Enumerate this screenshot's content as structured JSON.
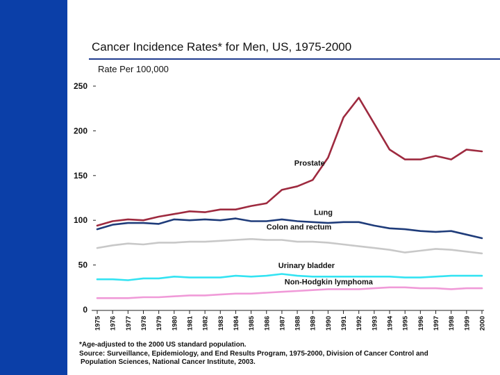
{
  "theme": {
    "sidebar_color": "#0b3fa8",
    "title_rule_color": "#1f3c8f"
  },
  "chart_data": {
    "type": "line",
    "title": "Cancer Incidence Rates* for Men, US, 1975-2000",
    "ylabel": "Rate Per 100,000",
    "xlabel": "",
    "ylim": [
      0,
      250
    ],
    "yticks": [
      0,
      50,
      100,
      150,
      200,
      250
    ],
    "grid": false,
    "legend": "inline labels",
    "x": [
      1975,
      1976,
      1977,
      1978,
      1979,
      1980,
      1981,
      1982,
      1983,
      1984,
      1985,
      1986,
      1987,
      1988,
      1989,
      1990,
      1991,
      1992,
      1993,
      1994,
      1995,
      1996,
      1997,
      1998,
      1999,
      2000
    ],
    "series": [
      {
        "name": "Prostate",
        "color": "#9e2a3f",
        "values": [
          94,
          99,
          101,
          100,
          104,
          107,
          110,
          109,
          112,
          112,
          116,
          119,
          134,
          138,
          145,
          170,
          215,
          237,
          208,
          179,
          168,
          168,
          172,
          168,
          179,
          177
        ]
      },
      {
        "name": "Lung",
        "color": "#1f3c7a",
        "values": [
          90,
          95,
          97,
          97,
          96,
          101,
          100,
          101,
          100,
          102,
          99,
          99,
          101,
          99,
          98,
          97,
          98,
          98,
          94,
          91,
          90,
          88,
          87,
          88,
          84,
          80
        ]
      },
      {
        "name": "Colon and rectum",
        "color": "#c8c8c8",
        "values": [
          69,
          72,
          74,
          73,
          75,
          75,
          76,
          76,
          77,
          78,
          79,
          78,
          78,
          76,
          76,
          75,
          73,
          71,
          69,
          67,
          64,
          66,
          68,
          67,
          65,
          63
        ]
      },
      {
        "name": "Urinary bladder",
        "color": "#33e3f2",
        "values": [
          34,
          34,
          33,
          35,
          35,
          37,
          36,
          36,
          36,
          38,
          37,
          38,
          40,
          38,
          37,
          37,
          37,
          37,
          37,
          37,
          36,
          36,
          37,
          38,
          38,
          38
        ]
      },
      {
        "name": "Non-Hodgkin lymphoma",
        "color": "#f09ad8",
        "values": [
          13,
          13,
          13,
          14,
          14,
          15,
          16,
          16,
          17,
          18,
          18,
          19,
          20,
          21,
          22,
          23,
          23,
          23,
          24,
          25,
          25,
          24,
          24,
          23,
          24,
          24
        ]
      }
    ]
  },
  "footnote": {
    "line1": "*Age-adjusted to the 2000 US standard population.",
    "line2": "Source: Surveillance, Epidemiology, and End Results Program, 1975-2000, Division of Cancer Control and",
    "line3": "Population Sciences, National Cancer Institute, 2003."
  }
}
